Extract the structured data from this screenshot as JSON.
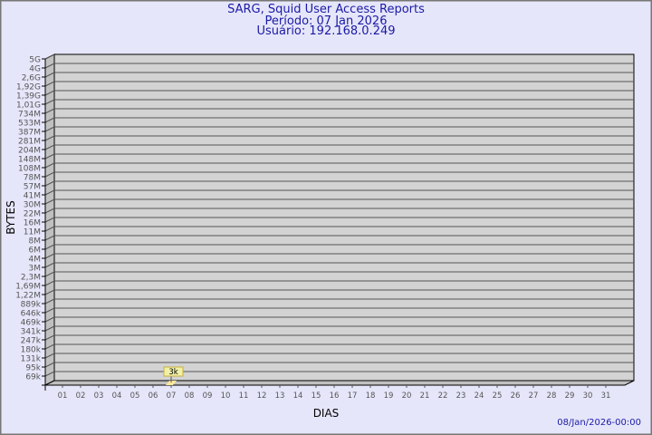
{
  "header": {
    "title": "SARG, Squid User Access Reports",
    "period": "Período: 07 Jan 2026",
    "user": "Usuário: 192.168.0.249"
  },
  "footer": {
    "timestamp": "08/Jan/2026-00:00"
  },
  "colors": {
    "title": "#1a1aa6",
    "background": "#e6e6fa",
    "plot": "#d3d3d3",
    "bar": "#ffe89a",
    "label_box": "#f0f0a8"
  },
  "chart_data": {
    "type": "bar",
    "xlabel": "DIAS",
    "ylabel": "BYTES",
    "y_scale": "log",
    "y_tick_labels": [
      "5G",
      "4G",
      "2,6G",
      "1,92G",
      "1,39G",
      "1,01G",
      "734M",
      "533M",
      "387M",
      "281M",
      "204M",
      "148M",
      "108M",
      "78M",
      "57M",
      "41M",
      "30M",
      "22M",
      "16M",
      "11M",
      "8M",
      "6M",
      "4M",
      "3M",
      "2,3M",
      "1,69M",
      "1,22M",
      "889k",
      "646k",
      "469k",
      "341k",
      "247k",
      "180k",
      "131k",
      "95k",
      "69k"
    ],
    "categories": [
      "01",
      "02",
      "03",
      "04",
      "05",
      "06",
      "07",
      "08",
      "09",
      "10",
      "11",
      "12",
      "13",
      "14",
      "15",
      "16",
      "17",
      "18",
      "19",
      "20",
      "21",
      "22",
      "23",
      "24",
      "25",
      "26",
      "27",
      "28",
      "29",
      "30",
      "31"
    ],
    "series": [
      {
        "values": [
          null,
          null,
          null,
          null,
          null,
          null,
          3000,
          null,
          null,
          null,
          null,
          null,
          null,
          null,
          null,
          null,
          null,
          null,
          null,
          null,
          null,
          null,
          null,
          null,
          null,
          null,
          null,
          null,
          null,
          null,
          null
        ],
        "data_labels": {
          "7": "3k"
        }
      }
    ],
    "grid": true
  }
}
